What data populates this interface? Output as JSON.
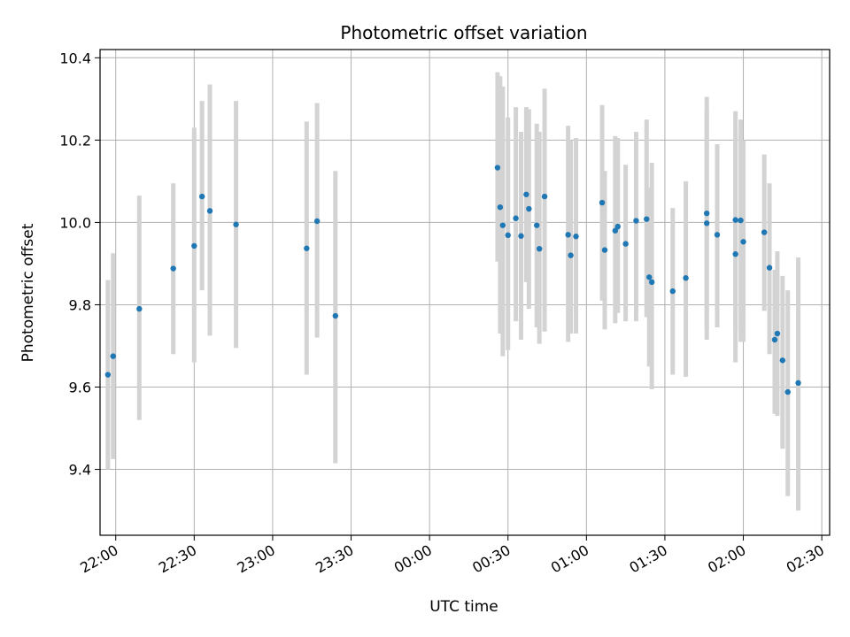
{
  "chart_data": {
    "type": "scatter",
    "title": "Photometric offset variation",
    "xlabel": "UTC time",
    "ylabel": "Photometric offset",
    "grid": true,
    "xlim": [
      "21:54",
      "02:33"
    ],
    "ylim": [
      9.24,
      10.42
    ],
    "x_ticks": [
      "22:00",
      "22:30",
      "23:00",
      "23:30",
      "00:00",
      "00:30",
      "01:00",
      "01:30",
      "02:00",
      "02:30"
    ],
    "y_ticks": [
      9.4,
      9.6,
      9.8,
      10.0,
      10.2,
      10.4
    ],
    "y_tick_labels": [
      "9.4",
      "9.6",
      "9.8",
      "10.0",
      "10.2",
      "10.4"
    ],
    "marker_color": "#1f77b4",
    "errorbar_color": "#d3d3d3",
    "series": [
      {
        "x": [
          "21:57",
          "21:59",
          "22:09",
          "22:22",
          "22:30",
          "22:33",
          "22:36",
          "22:46",
          "23:13",
          "23:17",
          "23:24",
          "00:26",
          "00:27",
          "00:28",
          "00:30",
          "00:33",
          "00:35",
          "00:37",
          "00:38",
          "00:41",
          "00:42",
          "00:44",
          "00:53",
          "00:54",
          "00:56",
          "01:06",
          "01:07",
          "01:11",
          "01:12",
          "01:15",
          "01:19",
          "01:23",
          "01:24",
          "01:25",
          "01:33",
          "01:38",
          "01:46",
          "01:46",
          "01:50",
          "01:57",
          "01:57",
          "01:59",
          "02:00",
          "02:08",
          "02:10",
          "02:12",
          "02:13",
          "02:15",
          "02:17",
          "02:21"
        ],
        "y": [
          9.63,
          9.675,
          9.79,
          9.888,
          9.943,
          10.063,
          10.028,
          9.995,
          9.937,
          10.003,
          9.773,
          10.133,
          10.037,
          9.993,
          9.969,
          10.01,
          9.967,
          10.068,
          10.033,
          9.993,
          9.936,
          10.063,
          9.97,
          9.92,
          9.966,
          10.048,
          9.933,
          9.98,
          9.99,
          9.948,
          10.004,
          10.008,
          9.867,
          9.855,
          9.833,
          9.865,
          10.022,
          9.998,
          9.97,
          10.006,
          9.923,
          10.005,
          9.953,
          9.976,
          9.89,
          9.715,
          9.73,
          9.665,
          9.588,
          9.61
        ],
        "yerr_low": [
          9.4,
          9.425,
          9.52,
          9.68,
          9.66,
          9.835,
          9.725,
          9.695,
          9.63,
          9.72,
          9.415,
          9.905,
          9.73,
          9.675,
          9.69,
          9.76,
          9.715,
          9.855,
          9.79,
          9.745,
          9.705,
          9.735,
          9.71,
          9.73,
          9.73,
          9.81,
          9.74,
          9.755,
          9.78,
          9.76,
          9.76,
          9.77,
          9.65,
          9.595,
          9.63,
          9.625,
          9.715,
          9.74,
          9.745,
          9.66,
          9.74,
          9.71,
          9.71,
          9.785,
          9.68,
          9.535,
          9.53,
          9.45,
          9.335,
          9.3
        ],
        "yerr_high": [
          9.86,
          9.925,
          10.065,
          10.095,
          10.23,
          10.295,
          10.335,
          10.295,
          10.245,
          10.29,
          10.125,
          10.365,
          10.355,
          10.33,
          10.255,
          10.28,
          10.22,
          10.28,
          10.275,
          10.24,
          10.22,
          10.325,
          10.235,
          10.2,
          10.205,
          10.285,
          10.125,
          10.21,
          10.205,
          10.14,
          10.22,
          10.25,
          10.085,
          10.145,
          10.035,
          10.1,
          10.305,
          10.275,
          10.19,
          10.27,
          10.215,
          10.25,
          10.2,
          10.165,
          10.095,
          9.885,
          9.93,
          9.87,
          9.835,
          9.915
        ]
      }
    ]
  }
}
